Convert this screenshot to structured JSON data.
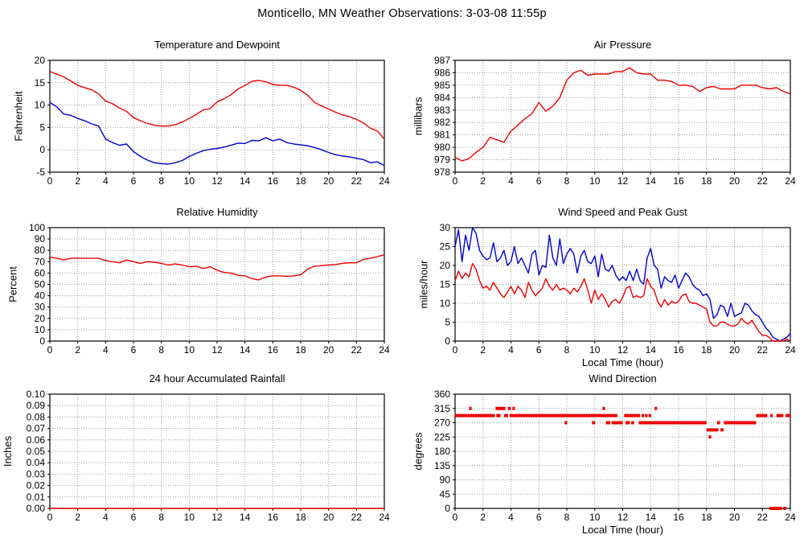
{
  "title": "Monticello, MN Weather Observations: 3-03-08 11:55p",
  "colors": {
    "red": "#ee0000",
    "blue": "#0000cc",
    "grid": "#999999",
    "axis": "#000000",
    "background": "#ffffff"
  },
  "chart_data": [
    {
      "id": "temperature_dewpoint",
      "type": "line",
      "title": "Temperature and Dewpoint",
      "ylabel": "Fahrenheit",
      "xlabel": "",
      "xlim": [
        0,
        24
      ],
      "xtick": 2,
      "ylim": [
        -5,
        20
      ],
      "ytick": 5,
      "ydecimals": 0,
      "grid": true,
      "series": [
        {
          "name": "temperature",
          "color": "red",
          "x_start": 0,
          "x_step": 0.5,
          "values": [
            17.5,
            16.9,
            16.3,
            15.4,
            14.4,
            13.9,
            13.4,
            12.5,
            10.9,
            10.3,
            9.3,
            8.6,
            7.2,
            6.5,
            5.9,
            5.5,
            5.3,
            5.3,
            5.6,
            6.2,
            7.0,
            7.9,
            8.9,
            9.2,
            10.7,
            11.4,
            12.3,
            13.6,
            14.4,
            15.3,
            15.5,
            15.2,
            14.6,
            14.4,
            14.4,
            14.0,
            13.3,
            12.2,
            10.6,
            9.8,
            9.1,
            8.4,
            7.8,
            7.4,
            6.8,
            6.0,
            4.8,
            4.2,
            2.4
          ]
        },
        {
          "name": "dewpoint",
          "color": "blue",
          "x_start": 0,
          "x_step": 0.5,
          "values": [
            10.6,
            9.6,
            8.0,
            7.7,
            7.0,
            6.5,
            5.8,
            5.3,
            2.4,
            1.6,
            1.0,
            1.3,
            -0.4,
            -1.5,
            -2.3,
            -2.9,
            -3.1,
            -3.2,
            -2.9,
            -2.4,
            -1.5,
            -0.8,
            -0.2,
            0.1,
            0.3,
            0.6,
            1.0,
            1.5,
            1.4,
            2.1,
            2.0,
            2.7,
            2.0,
            2.4,
            1.6,
            1.3,
            1.1,
            0.9,
            0.5,
            0.0,
            -0.6,
            -1.1,
            -1.4,
            -1.6,
            -1.9,
            -2.2,
            -2.9,
            -2.7,
            -3.5
          ]
        }
      ]
    },
    {
      "id": "air_pressure",
      "type": "line",
      "title": "Air Pressure",
      "ylabel": "millibars",
      "xlabel": "",
      "xlim": [
        0,
        24
      ],
      "xtick": 2,
      "ylim": [
        978,
        987
      ],
      "ytick": 1,
      "ydecimals": 0,
      "grid": true,
      "series": [
        {
          "name": "pressure",
          "color": "red",
          "x_start": 0,
          "x_step": 0.5,
          "values": [
            979.2,
            978.9,
            979.1,
            979.6,
            980.0,
            980.8,
            980.6,
            980.4,
            981.3,
            981.8,
            982.3,
            982.7,
            983.6,
            982.9,
            983.3,
            984.0,
            985.4,
            986.0,
            986.2,
            985.8,
            985.9,
            985.9,
            985.9,
            986.1,
            986.1,
            986.4,
            986.0,
            985.9,
            985.9,
            985.4,
            985.4,
            985.3,
            985.0,
            985.0,
            984.9,
            984.5,
            984.8,
            984.9,
            984.7,
            984.7,
            984.7,
            985.0,
            985.0,
            985.0,
            984.8,
            984.7,
            984.8,
            984.5,
            984.3
          ]
        }
      ]
    },
    {
      "id": "relative_humidity",
      "type": "line",
      "title": "Relative Humidity",
      "ylabel": "Percent",
      "xlabel": "",
      "xlim": [
        0,
        24
      ],
      "xtick": 2,
      "ylim": [
        0,
        100
      ],
      "ytick": 10,
      "ydecimals": 0,
      "grid": true,
      "series": [
        {
          "name": "humidity",
          "color": "red",
          "x_start": 0,
          "x_step": 0.5,
          "values": [
            74,
            73,
            71.5,
            73,
            73,
            73,
            73,
            73,
            71,
            70,
            69,
            71.5,
            70,
            68.5,
            70,
            69.5,
            68.5,
            67,
            68,
            67,
            65.5,
            66,
            64,
            65.5,
            62.5,
            60.5,
            60,
            58,
            57.5,
            55,
            54,
            56.5,
            57.5,
            57.5,
            57,
            57.5,
            58.5,
            63.5,
            66,
            66.5,
            67,
            67.5,
            68.5,
            69,
            69,
            72,
            73,
            74.5,
            76
          ]
        }
      ]
    },
    {
      "id": "wind_speed_gust",
      "type": "line",
      "title": "Wind Speed and Peak Gust",
      "ylabel": "miles/hour",
      "xlabel": "Local Time (hour)",
      "xlim": [
        0,
        24
      ],
      "xtick": 2,
      "ylim": [
        0,
        30
      ],
      "ytick": 5,
      "ydecimals": 0,
      "grid": true,
      "series": [
        {
          "name": "peak-gust",
          "color": "blue",
          "x_start": 0,
          "x_step": 0.25,
          "values": [
            25,
            29.5,
            21,
            28,
            24,
            30,
            28.5,
            24,
            22.5,
            21.5,
            22,
            26,
            21,
            22,
            24,
            20,
            21,
            25,
            20.5,
            22,
            20,
            18,
            23,
            24,
            17.5,
            20,
            19.5,
            28,
            22,
            20,
            27,
            20.5,
            23,
            24.5,
            23,
            18,
            22.5,
            24,
            21,
            20.5,
            22.5,
            17,
            23,
            19,
            18.5,
            20,
            17.5,
            16,
            17,
            16,
            18.5,
            16,
            19,
            16,
            15,
            22,
            24.5,
            20,
            19,
            14,
            17,
            16,
            15.5,
            17.5,
            14,
            16,
            18,
            17,
            15,
            14,
            13.5,
            12,
            12.5,
            11,
            6,
            7,
            9.5,
            9,
            6.5,
            10,
            6.5,
            7,
            7.5,
            10,
            9.5,
            8,
            7,
            6.5,
            5,
            3.5,
            2.5,
            1,
            0.5,
            0,
            0.5,
            1,
            2
          ]
        },
        {
          "name": "wind-speed",
          "color": "red",
          "x_start": 0,
          "x_step": 0.25,
          "values": [
            16,
            18.5,
            16.5,
            18,
            17,
            20.5,
            19,
            16,
            14,
            14.5,
            13.5,
            15.5,
            14,
            12.5,
            11.5,
            13,
            14.5,
            12.5,
            14.5,
            13.5,
            11.5,
            15.5,
            13.5,
            12,
            13,
            14,
            16.5,
            14.5,
            13.5,
            15,
            13.5,
            14,
            13.5,
            12.5,
            14,
            13,
            14.5,
            16.5,
            13.5,
            10,
            13.5,
            11,
            12.5,
            11,
            9,
            10.5,
            11,
            10,
            11.5,
            14,
            14.5,
            11.5,
            12,
            11.5,
            12,
            16.5,
            14.5,
            13.5,
            10.5,
            9,
            11,
            9.5,
            10.5,
            10,
            10.5,
            12,
            12.5,
            10.5,
            10,
            10,
            9.5,
            9,
            8.5,
            5,
            4,
            4,
            5,
            5,
            4.5,
            4,
            4,
            4.5,
            6,
            5,
            4.5,
            5.5,
            4,
            2.5,
            1.5,
            1.5,
            1,
            0,
            0,
            0,
            0,
            0.5,
            0
          ]
        }
      ]
    },
    {
      "id": "rainfall",
      "type": "line",
      "title": "24 hour Accumulated Rainfall",
      "ylabel": "Inches",
      "xlabel": "",
      "xlim": [
        0,
        24
      ],
      "xtick": 2,
      "ylim": [
        0,
        0.1
      ],
      "ytick": 0.01,
      "ydecimals": 2,
      "grid": true,
      "series": [
        {
          "name": "rainfall",
          "color": "red",
          "x_start": 0,
          "x_step": 24,
          "values": [
            0,
            0
          ]
        }
      ]
    },
    {
      "id": "wind_direction",
      "type": "runs",
      "title": "Wind Direction",
      "ylabel": "degrees",
      "xlabel": "Local Time (hour)",
      "xlim": [
        0,
        24
      ],
      "xtick": 2,
      "ylim": [
        0,
        360
      ],
      "ytick": 45,
      "ydecimals": 0,
      "grid": true,
      "marker": "square",
      "runs": [
        [
          292.5,
          0.0,
          2.85
        ],
        [
          315,
          1.0,
          1.12
        ],
        [
          315,
          2.9,
          3.6
        ],
        [
          292.5,
          2.95,
          3.25
        ],
        [
          292.5,
          3.5,
          3.8
        ],
        [
          315,
          3.78,
          3.98
        ],
        [
          292.5,
          3.9,
          11.62
        ],
        [
          315,
          4.1,
          4.27
        ],
        [
          270,
          7.85,
          7.97
        ],
        [
          270,
          9.8,
          10.02
        ],
        [
          315,
          10.55,
          10.67
        ],
        [
          270,
          10.8,
          11.12
        ],
        [
          270,
          11.2,
          12.0
        ],
        [
          292.5,
          12.1,
          13.25
        ],
        [
          270,
          12.2,
          12.52
        ],
        [
          270,
          12.6,
          12.82
        ],
        [
          270,
          13.15,
          18.0
        ],
        [
          292.5,
          13.35,
          13.5
        ],
        [
          292.5,
          13.6,
          13.72
        ],
        [
          292.5,
          13.85,
          14.0
        ],
        [
          315,
          14.28,
          14.4
        ],
        [
          247.5,
          18.0,
          18.85
        ],
        [
          225,
          18.15,
          18.3
        ],
        [
          270,
          18.75,
          18.97
        ],
        [
          247.5,
          19.0,
          19.22
        ],
        [
          270,
          19.25,
          21.55
        ],
        [
          292.5,
          21.55,
          22.35
        ],
        [
          292.5,
          22.55,
          22.72
        ],
        [
          0,
          22.5,
          23.4
        ],
        [
          292.5,
          23.0,
          23.5
        ],
        [
          0,
          23.5,
          23.68
        ],
        [
          292.5,
          23.65,
          24.0
        ]
      ]
    }
  ]
}
